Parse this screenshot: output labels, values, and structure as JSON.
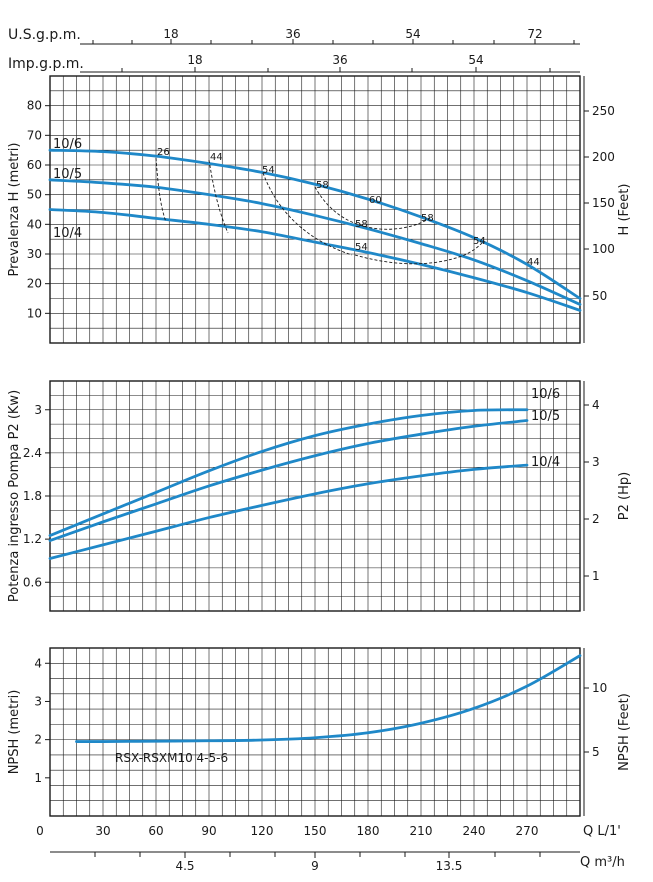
{
  "colors": {
    "curve": "#1f88c8",
    "grid": "#1a1a1a",
    "background": "#ffffff"
  },
  "top_axes": {
    "us_label": "U.S.g.p.m.",
    "us_ticks": [
      "18",
      "36",
      "54",
      "72"
    ],
    "imp_label": "Imp.g.p.m.",
    "imp_ticks": [
      "18",
      "36",
      "54"
    ]
  },
  "bottom_axes": {
    "q_lmin_label": "Q L/1'",
    "q_m3h_label": "Q m³/h",
    "m3h_ticks": [
      "4.5",
      "9",
      "13.5"
    ]
  },
  "footer_label": "RSX-RSXM10 4-5-6",
  "chart_data": [
    {
      "type": "line",
      "title": "",
      "xlabel": "Q L/1'",
      "ylabel": "Prevalenza H (metri)",
      "ylabel_right": "H (Feet)",
      "xlim": [
        0,
        300
      ],
      "ylim": [
        0,
        90
      ],
      "yticks": [
        10,
        20,
        30,
        40,
        50,
        60,
        70,
        80
      ],
      "yticks_right": [
        50,
        100,
        150,
        200,
        250
      ],
      "series": [
        {
          "name": "10/6",
          "x": [
            0,
            30,
            60,
            90,
            120,
            150,
            180,
            210,
            240,
            270,
            300
          ],
          "values": [
            65,
            64.5,
            63,
            60.5,
            57.5,
            53.5,
            48.5,
            42.5,
            35.5,
            26.5,
            15
          ]
        },
        {
          "name": "10/5",
          "x": [
            0,
            30,
            60,
            90,
            120,
            150,
            180,
            210,
            240,
            270,
            300
          ],
          "values": [
            55,
            54,
            52.5,
            50,
            47,
            43,
            38.5,
            33.5,
            28,
            21,
            13
          ]
        },
        {
          "name": "10/4",
          "x": [
            0,
            30,
            60,
            90,
            120,
            150,
            180,
            210,
            240,
            270,
            300
          ],
          "values": [
            45,
            44,
            42,
            40,
            37.5,
            34,
            30.5,
            26.5,
            22,
            17,
            11
          ]
        }
      ],
      "efficiency_labels": [
        "26",
        "44",
        "54",
        "58",
        "60",
        "58",
        "58",
        "54",
        "54",
        "44"
      ]
    },
    {
      "type": "line",
      "title": "",
      "xlabel": "Q L/1'",
      "ylabel": "Potenza ingresso Pompa P2 (Kw)",
      "ylabel_right": "P2 (Hp)",
      "xlim": [
        0,
        300
      ],
      "ylim": [
        0.2,
        3.4
      ],
      "yticks": [
        "0.6",
        "1.2",
        "1.8",
        "2.4",
        "3"
      ],
      "yticks_right": [
        "1",
        "2",
        "3",
        "4"
      ],
      "series": [
        {
          "name": "10/6",
          "x": [
            0,
            30,
            60,
            90,
            120,
            150,
            180,
            210,
            240,
            270
          ],
          "values": [
            1.25,
            1.55,
            1.85,
            2.15,
            2.42,
            2.64,
            2.8,
            2.92,
            2.99,
            3.0
          ]
        },
        {
          "name": "10/5",
          "x": [
            0,
            30,
            60,
            90,
            120,
            150,
            180,
            210,
            240,
            270
          ],
          "values": [
            1.18,
            1.44,
            1.69,
            1.94,
            2.16,
            2.36,
            2.53,
            2.66,
            2.77,
            2.85
          ]
        },
        {
          "name": "10/4",
          "x": [
            0,
            30,
            60,
            90,
            120,
            150,
            180,
            210,
            240,
            270
          ],
          "values": [
            0.93,
            1.12,
            1.31,
            1.5,
            1.67,
            1.83,
            1.97,
            2.08,
            2.17,
            2.23
          ]
        }
      ]
    },
    {
      "type": "line",
      "title": "",
      "xlabel": "Q L/1'",
      "ylabel": "NPSH (metri)",
      "ylabel_right": "NPSH (Feet)",
      "xlim": [
        0,
        300
      ],
      "ylim": [
        0,
        4.4
      ],
      "yticks": [
        "1",
        "2",
        "3",
        "4"
      ],
      "yticks_right": [
        "5",
        "10"
      ],
      "series": [
        {
          "name": "",
          "x": [
            15,
            30,
            60,
            90,
            120,
            150,
            180,
            210,
            240,
            270,
            300
          ],
          "values": [
            1.95,
            1.95,
            1.96,
            1.97,
            1.99,
            2.05,
            2.18,
            2.43,
            2.82,
            3.4,
            4.2
          ]
        }
      ]
    }
  ],
  "x_tick_labels": [
    "0",
    "30",
    "60",
    "90",
    "120",
    "150",
    "180",
    "210",
    "240",
    "270"
  ]
}
